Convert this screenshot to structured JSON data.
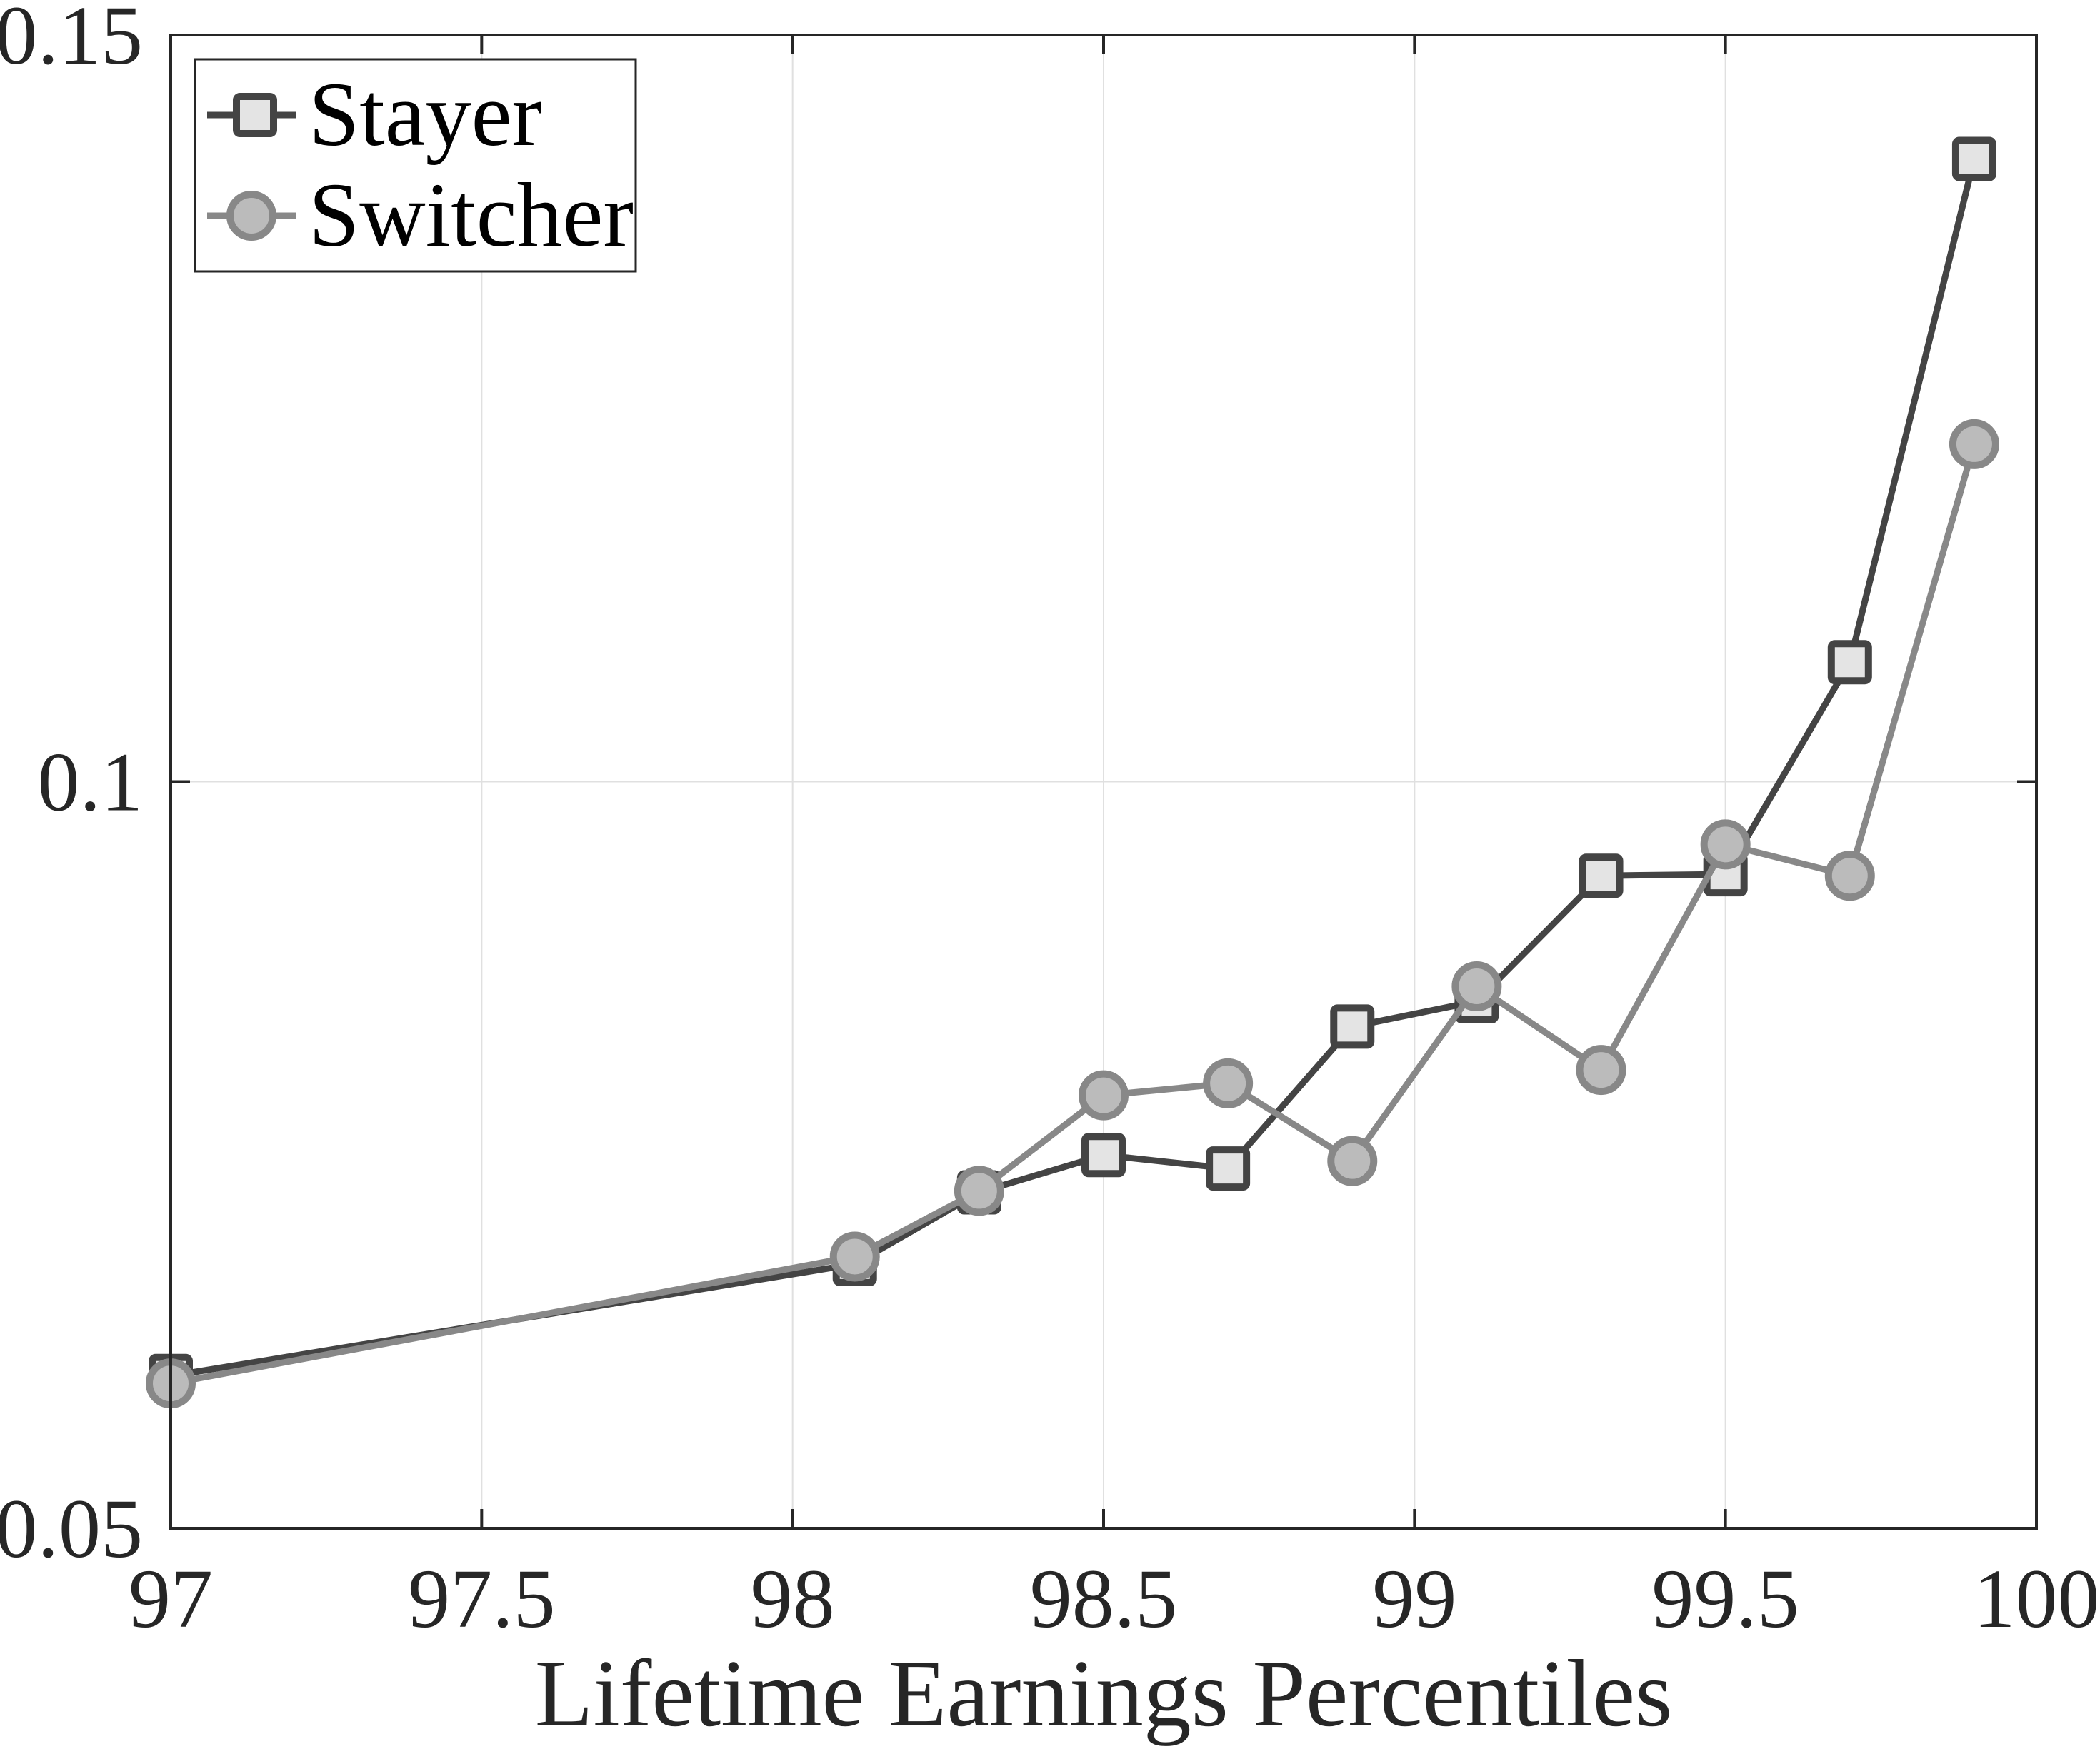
{
  "chart_data": {
    "type": "line",
    "title": "",
    "xlabel": "Lifetime Earnings Percentiles",
    "ylabel": "",
    "xlim": [
      97,
      100
    ],
    "ylim": [
      0.05,
      0.15
    ],
    "xticks": [
      97,
      97.5,
      98,
      98.5,
      99,
      99.5,
      100
    ],
    "xtick_labels": [
      "97",
      "97.5",
      "98",
      "98.5",
      "99",
      "99.5",
      "100"
    ],
    "yticks": [
      0.05,
      0.1,
      0.15
    ],
    "ytick_labels": [
      "0.05",
      "0.1",
      "0.15"
    ],
    "grid": true,
    "legend_position": "upper left",
    "x": [
      97,
      98.1,
      98.3,
      98.5,
      98.7,
      98.9,
      99.1,
      99.3,
      99.5,
      99.7,
      99.9
    ],
    "series": [
      {
        "name": "Stayer",
        "marker": "square",
        "line_color": "#444444",
        "marker_fill": "#e4e4e4",
        "values": [
          0.0602,
          0.0677,
          0.0725,
          0.075,
          0.0741,
          0.0836,
          0.0853,
          0.0937,
          0.0938,
          0.108,
          0.1417
        ]
      },
      {
        "name": "Switcher",
        "marker": "circle",
        "line_color": "#888888",
        "marker_fill": "#bbbbbb",
        "values": [
          0.0597,
          0.0682,
          0.0726,
          0.079,
          0.0798,
          0.0746,
          0.0863,
          0.0807,
          0.0958,
          0.0937,
          0.1226
        ]
      }
    ]
  },
  "legend": {
    "items": [
      {
        "label": "Stayer"
      },
      {
        "label": "Switcher"
      }
    ]
  },
  "axes": {
    "xlabel": "Lifetime Earnings Percentiles",
    "axis_color": "#262626",
    "grid_color": "#e0e0e0"
  }
}
